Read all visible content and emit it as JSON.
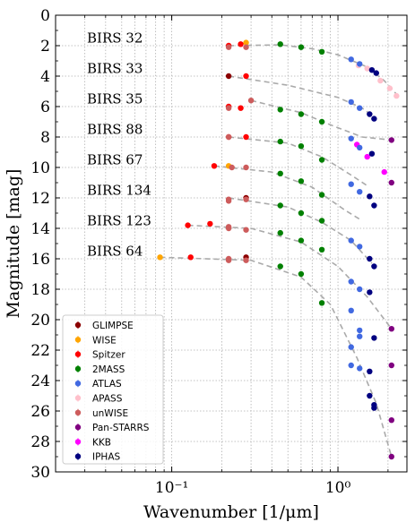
{
  "chart_data": {
    "type": "scatter",
    "xlabel": "Wavenumber [1/μm]",
    "ylabel": "Magnitude [mag]",
    "xscale": "log",
    "xlim": [
      0.02,
      2.6
    ],
    "ylim": [
      30,
      0
    ],
    "yticks": [
      0,
      2,
      4,
      6,
      8,
      10,
      12,
      14,
      16,
      18,
      20,
      22,
      24,
      26,
      28,
      30
    ],
    "xtick_labels": [
      {
        "x": 0.1,
        "label": "10⁻¹"
      },
      {
        "x": 1,
        "label": "10⁰"
      }
    ],
    "grid": true,
    "legend_position": "bottom-left",
    "fit_color": "#aaaaaa",
    "legend": [
      {
        "name": "GLIMPSE",
        "color": "#8b0000"
      },
      {
        "name": "WISE",
        "color": "#ffa500"
      },
      {
        "name": "Spitzer",
        "color": "#ff0000"
      },
      {
        "name": "2MASS",
        "color": "#008000"
      },
      {
        "name": "ATLAS",
        "color": "#4169e1"
      },
      {
        "name": "APASS",
        "color": "#ffc0cb"
      },
      {
        "name": "unWISE",
        "color": "#cd5c5c"
      },
      {
        "name": "Pan-STARRS",
        "color": "#800080"
      },
      {
        "name": "KKB",
        "color": "#ff00ff"
      },
      {
        "name": "IPHAS",
        "color": "#000080"
      }
    ],
    "stars": [
      {
        "name": "BIRS 32",
        "label_y": 1.5,
        "points": [
          [
            0.22,
            2.0,
            "Spitzer"
          ],
          [
            0.22,
            2.1,
            "unWISE"
          ],
          [
            0.28,
            1.8,
            "WISE"
          ],
          [
            0.28,
            2.1,
            "unWISE"
          ],
          [
            0.26,
            1.9,
            "Spitzer"
          ],
          [
            0.45,
            1.9,
            "2MASS"
          ],
          [
            0.6,
            2.1,
            "2MASS"
          ],
          [
            0.8,
            2.4,
            "2MASS"
          ],
          [
            1.2,
            2.9,
            "ATLAS"
          ],
          [
            1.33,
            3.3,
            "APASS"
          ],
          [
            1.5,
            3.5,
            "APASS"
          ],
          [
            1.6,
            3.6,
            "IPHAS"
          ],
          [
            1.7,
            3.8,
            "IPHAS"
          ],
          [
            1.8,
            4.3,
            "APASS"
          ],
          [
            2.05,
            4.8,
            "APASS"
          ],
          [
            2.25,
            5.3,
            "APASS"
          ],
          [
            1.35,
            3.2,
            "ATLAS"
          ]
        ],
        "fit": [
          [
            0.22,
            2.0
          ],
          [
            0.45,
            1.95
          ],
          [
            0.7,
            2.2
          ],
          [
            1.0,
            2.6
          ],
          [
            1.5,
            3.4
          ],
          [
            1.9,
            4.3
          ],
          [
            2.3,
            5.3
          ]
        ]
      },
      {
        "name": "BIRS 33",
        "label_y": 3.5,
        "points": [
          [
            0.22,
            4.0,
            "GLIMPSE"
          ],
          [
            0.28,
            4.0,
            "Spitzer"
          ],
          [
            1.2,
            5.7,
            "ATLAS"
          ],
          [
            1.35,
            6.1,
            "ATLAS"
          ],
          [
            1.55,
            6.5,
            "IPHAS"
          ],
          [
            1.65,
            6.8,
            "IPHAS"
          ]
        ],
        "fit": [
          [
            0.22,
            4.0
          ],
          [
            0.5,
            4.6
          ],
          [
            1.0,
            5.4
          ],
          [
            1.4,
            6.1
          ],
          [
            1.7,
            6.8
          ]
        ]
      },
      {
        "name": "BIRS 35",
        "label_y": 5.5,
        "points": [
          [
            0.22,
            6.0,
            "Spitzer"
          ],
          [
            0.22,
            6.1,
            "unWISE"
          ],
          [
            0.26,
            6.1,
            "Spitzer"
          ],
          [
            0.3,
            5.6,
            "unWISE"
          ],
          [
            0.45,
            6.2,
            "2MASS"
          ],
          [
            0.6,
            6.5,
            "2MASS"
          ],
          [
            0.8,
            7.0,
            "2MASS"
          ],
          [
            2.1,
            8.2,
            "Pan-STARRS"
          ],
          [
            1.3,
            8.5,
            "KKB"
          ],
          [
            1.5,
            9.3,
            "KKB"
          ],
          [
            1.9,
            10.3,
            "KKB"
          ],
          [
            1.2,
            8.1,
            "ATLAS"
          ],
          [
            1.35,
            8.7,
            "ATLAS"
          ],
          [
            1.6,
            9.1,
            "IPHAS"
          ]
        ],
        "fit": [
          [
            0.3,
            5.6
          ],
          [
            0.6,
            6.4
          ],
          [
            0.9,
            7.2
          ],
          [
            1.4,
            8.0
          ],
          [
            2.1,
            8.2
          ]
        ]
      },
      {
        "name": "BIRS 88",
        "label_y": 7.5,
        "points": [
          [
            0.22,
            8.0,
            "Spitzer"
          ],
          [
            0.22,
            8.0,
            "unWISE"
          ],
          [
            0.28,
            8.0,
            "Spitzer"
          ],
          [
            0.45,
            8.3,
            "2MASS"
          ],
          [
            0.6,
            8.6,
            "2MASS"
          ],
          [
            0.8,
            9.5,
            "2MASS"
          ]
        ],
        "fit": [
          [
            0.22,
            8.0
          ],
          [
            0.5,
            8.4
          ],
          [
            0.8,
            9.3
          ],
          [
            1.2,
            10.5
          ],
          [
            1.5,
            11.2
          ]
        ]
      },
      {
        "name": "BIRS 67",
        "label_y": 9.5,
        "points": [
          [
            0.18,
            9.9,
            "Spitzer"
          ],
          [
            0.22,
            9.9,
            "WISE"
          ],
          [
            0.23,
            10.0,
            "unWISE"
          ],
          [
            0.28,
            10.0,
            "unWISE"
          ],
          [
            0.45,
            10.4,
            "2MASS"
          ],
          [
            0.6,
            10.9,
            "2MASS"
          ],
          [
            0.8,
            11.8,
            "2MASS"
          ],
          [
            1.2,
            11.1,
            "ATLAS"
          ],
          [
            1.35,
            11.6,
            "ATLAS"
          ],
          [
            1.55,
            11.9,
            "IPHAS"
          ],
          [
            2.1,
            11.0,
            "Pan-STARRS"
          ],
          [
            1.65,
            12.5,
            "IPHAS"
          ]
        ],
        "fit": [
          [
            0.18,
            9.9
          ],
          [
            0.4,
            10.3
          ],
          [
            0.7,
            11.3
          ],
          [
            1.1,
            12.8
          ],
          [
            1.4,
            13.5
          ]
        ]
      },
      {
        "name": "BIRS 134",
        "label_y": 11.5,
        "points": [
          [
            0.22,
            12.2,
            "unWISE"
          ],
          [
            0.22,
            12.1,
            "unWISE"
          ],
          [
            0.28,
            12.0,
            "GLIMPSE"
          ],
          [
            0.28,
            12.1,
            "unWISE"
          ],
          [
            0.45,
            12.5,
            "2MASS"
          ],
          [
            0.6,
            13.0,
            "2MASS"
          ],
          [
            0.8,
            13.5,
            "2MASS"
          ],
          [
            1.2,
            14.8,
            "ATLAS"
          ],
          [
            1.35,
            15.2,
            "ATLAS"
          ],
          [
            1.55,
            16.0,
            "IPHAS"
          ],
          [
            1.65,
            16.5,
            "IPHAS"
          ]
        ],
        "fit": [
          [
            0.22,
            12.0
          ],
          [
            0.5,
            12.6
          ],
          [
            0.8,
            13.6
          ],
          [
            1.2,
            14.8
          ],
          [
            1.6,
            16.3
          ]
        ]
      },
      {
        "name": "BIRS 123",
        "label_y": 13.5,
        "points": [
          [
            0.125,
            13.8,
            "Spitzer"
          ],
          [
            0.17,
            13.7,
            "Spitzer"
          ],
          [
            0.22,
            13.9,
            "unWISE"
          ],
          [
            0.22,
            14.0,
            "unWISE"
          ],
          [
            0.28,
            14.1,
            "unWISE"
          ],
          [
            0.45,
            14.3,
            "2MASS"
          ],
          [
            0.6,
            14.8,
            "2MASS"
          ],
          [
            0.8,
            15.4,
            "2MASS"
          ],
          [
            1.2,
            17.5,
            "ATLAS"
          ],
          [
            1.35,
            18.0,
            "ATLAS"
          ],
          [
            1.55,
            18.2,
            "IPHAS"
          ],
          [
            2.1,
            20.6,
            "Pan-STARRS"
          ],
          [
            1.65,
            21.2,
            "IPHAS"
          ],
          [
            1.35,
            20.7,
            "ATLAS"
          ],
          [
            1.2,
            23.0,
            "ATLAS"
          ]
        ],
        "fit": [
          [
            0.125,
            13.8
          ],
          [
            0.3,
            14.0
          ],
          [
            0.6,
            14.9
          ],
          [
            1.0,
            16.5
          ],
          [
            1.5,
            18.5
          ],
          [
            2.1,
            20.6
          ]
        ]
      },
      {
        "name": "BIRS 64",
        "label_y": 15.5,
        "points": [
          [
            0.085,
            15.9,
            "WISE"
          ],
          [
            0.13,
            15.9,
            "Spitzer"
          ],
          [
            0.22,
            16.0,
            "unWISE"
          ],
          [
            0.22,
            16.1,
            "unWISE"
          ],
          [
            0.28,
            15.9,
            "GLIMPSE"
          ],
          [
            0.28,
            16.1,
            "unWISE"
          ],
          [
            0.45,
            16.5,
            "2MASS"
          ],
          [
            0.6,
            17.0,
            "2MASS"
          ],
          [
            0.8,
            18.9,
            "2MASS"
          ],
          [
            1.2,
            21.8,
            "ATLAS"
          ],
          [
            1.35,
            23.2,
            "ATLAS"
          ],
          [
            1.55,
            25.0,
            "IPHAS"
          ],
          [
            1.65,
            25.6,
            "IPHAS"
          ],
          [
            2.1,
            23.0,
            "Pan-STARRS"
          ],
          [
            2.1,
            26.6,
            "Pan-STARRS"
          ],
          [
            2.1,
            29.0,
            "Pan-STARRS"
          ],
          [
            1.2,
            19.4,
            "ATLAS"
          ],
          [
            1.35,
            21.1,
            "ATLAS"
          ],
          [
            1.55,
            23.4,
            "IPHAS"
          ],
          [
            1.65,
            25.8,
            "IPHAS"
          ]
        ],
        "fit": [
          [
            0.085,
            15.9
          ],
          [
            0.3,
            16.1
          ],
          [
            0.6,
            17.2
          ],
          [
            0.9,
            19.0
          ],
          [
            1.3,
            22.5
          ],
          [
            1.7,
            25.5
          ],
          [
            2.1,
            29.0
          ]
        ]
      }
    ]
  }
}
